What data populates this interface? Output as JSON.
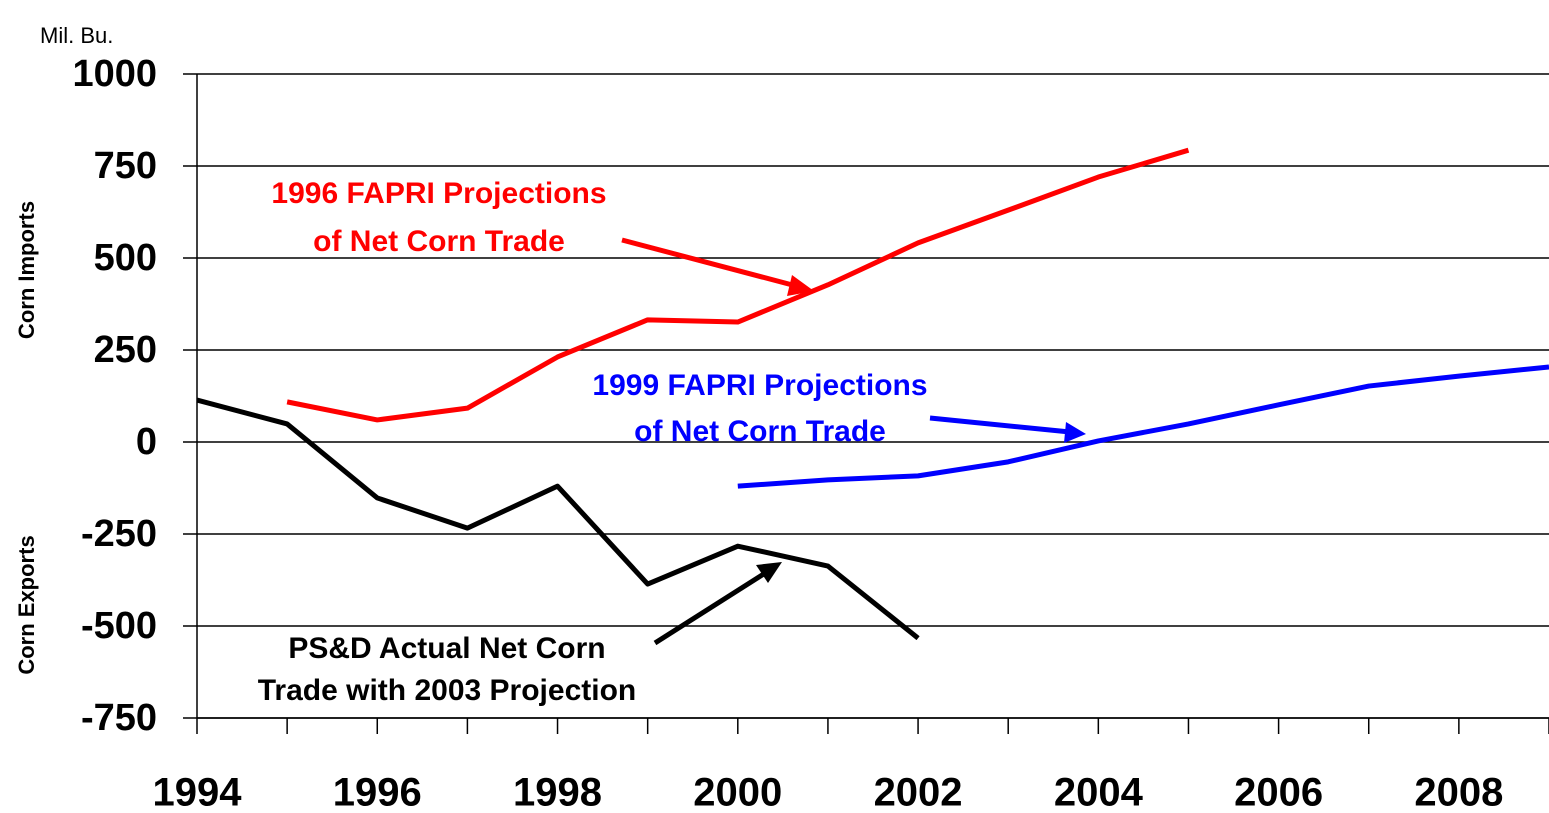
{
  "chart_data": {
    "type": "line",
    "y_unit": "Mil. Bu.",
    "y_label_top": "Corn Imports",
    "y_label_bottom": "Corn Exports",
    "xlim": [
      1994,
      2009
    ],
    "xticks": [
      1994,
      1996,
      1998,
      2000,
      2002,
      2004,
      2006,
      2008
    ],
    "ylim": [
      -750,
      1000
    ],
    "yticks": [
      -750,
      -500,
      -250,
      0,
      250,
      500,
      750,
      1000
    ],
    "grid": true,
    "series": [
      {
        "color": "#ff0000",
        "x": [
          1995,
          1996,
          1997,
          1998,
          1999,
          2000,
          2001,
          2002,
          2003,
          2004,
          2005
        ],
        "values": [
          109,
          60,
          92,
          231,
          332,
          326,
          427,
          541,
          630,
          720,
          793
        ]
      },
      {
        "color": "#0000ff",
        "x": [
          2000,
          2001,
          2002,
          2003,
          2004,
          2005,
          2006,
          2007,
          2008,
          2009
        ],
        "values": [
          -120,
          -103,
          -92,
          -54,
          3,
          49,
          101,
          152,
          179,
          204
        ]
      },
      {
        "color": "#000000",
        "x": [
          1994,
          1995,
          1996,
          1997,
          1998,
          1999,
          2000,
          2001,
          2002
        ],
        "values": [
          114,
          49,
          -152,
          -234,
          -120,
          -386,
          -283,
          -337,
          -533
        ]
      }
    ],
    "annotations": [
      {
        "lines": [
          "1996 FAPRI Projections",
          "of Net Corn Trade"
        ],
        "color": "#ff0000"
      },
      {
        "lines": [
          "1999 FAPRI Projections",
          "of Net Corn Trade"
        ],
        "color": "#0000ff"
      },
      {
        "lines": [
          "PS&D Actual Net Corn",
          "Trade with 2003 Projection"
        ],
        "color": "#000000"
      }
    ]
  }
}
